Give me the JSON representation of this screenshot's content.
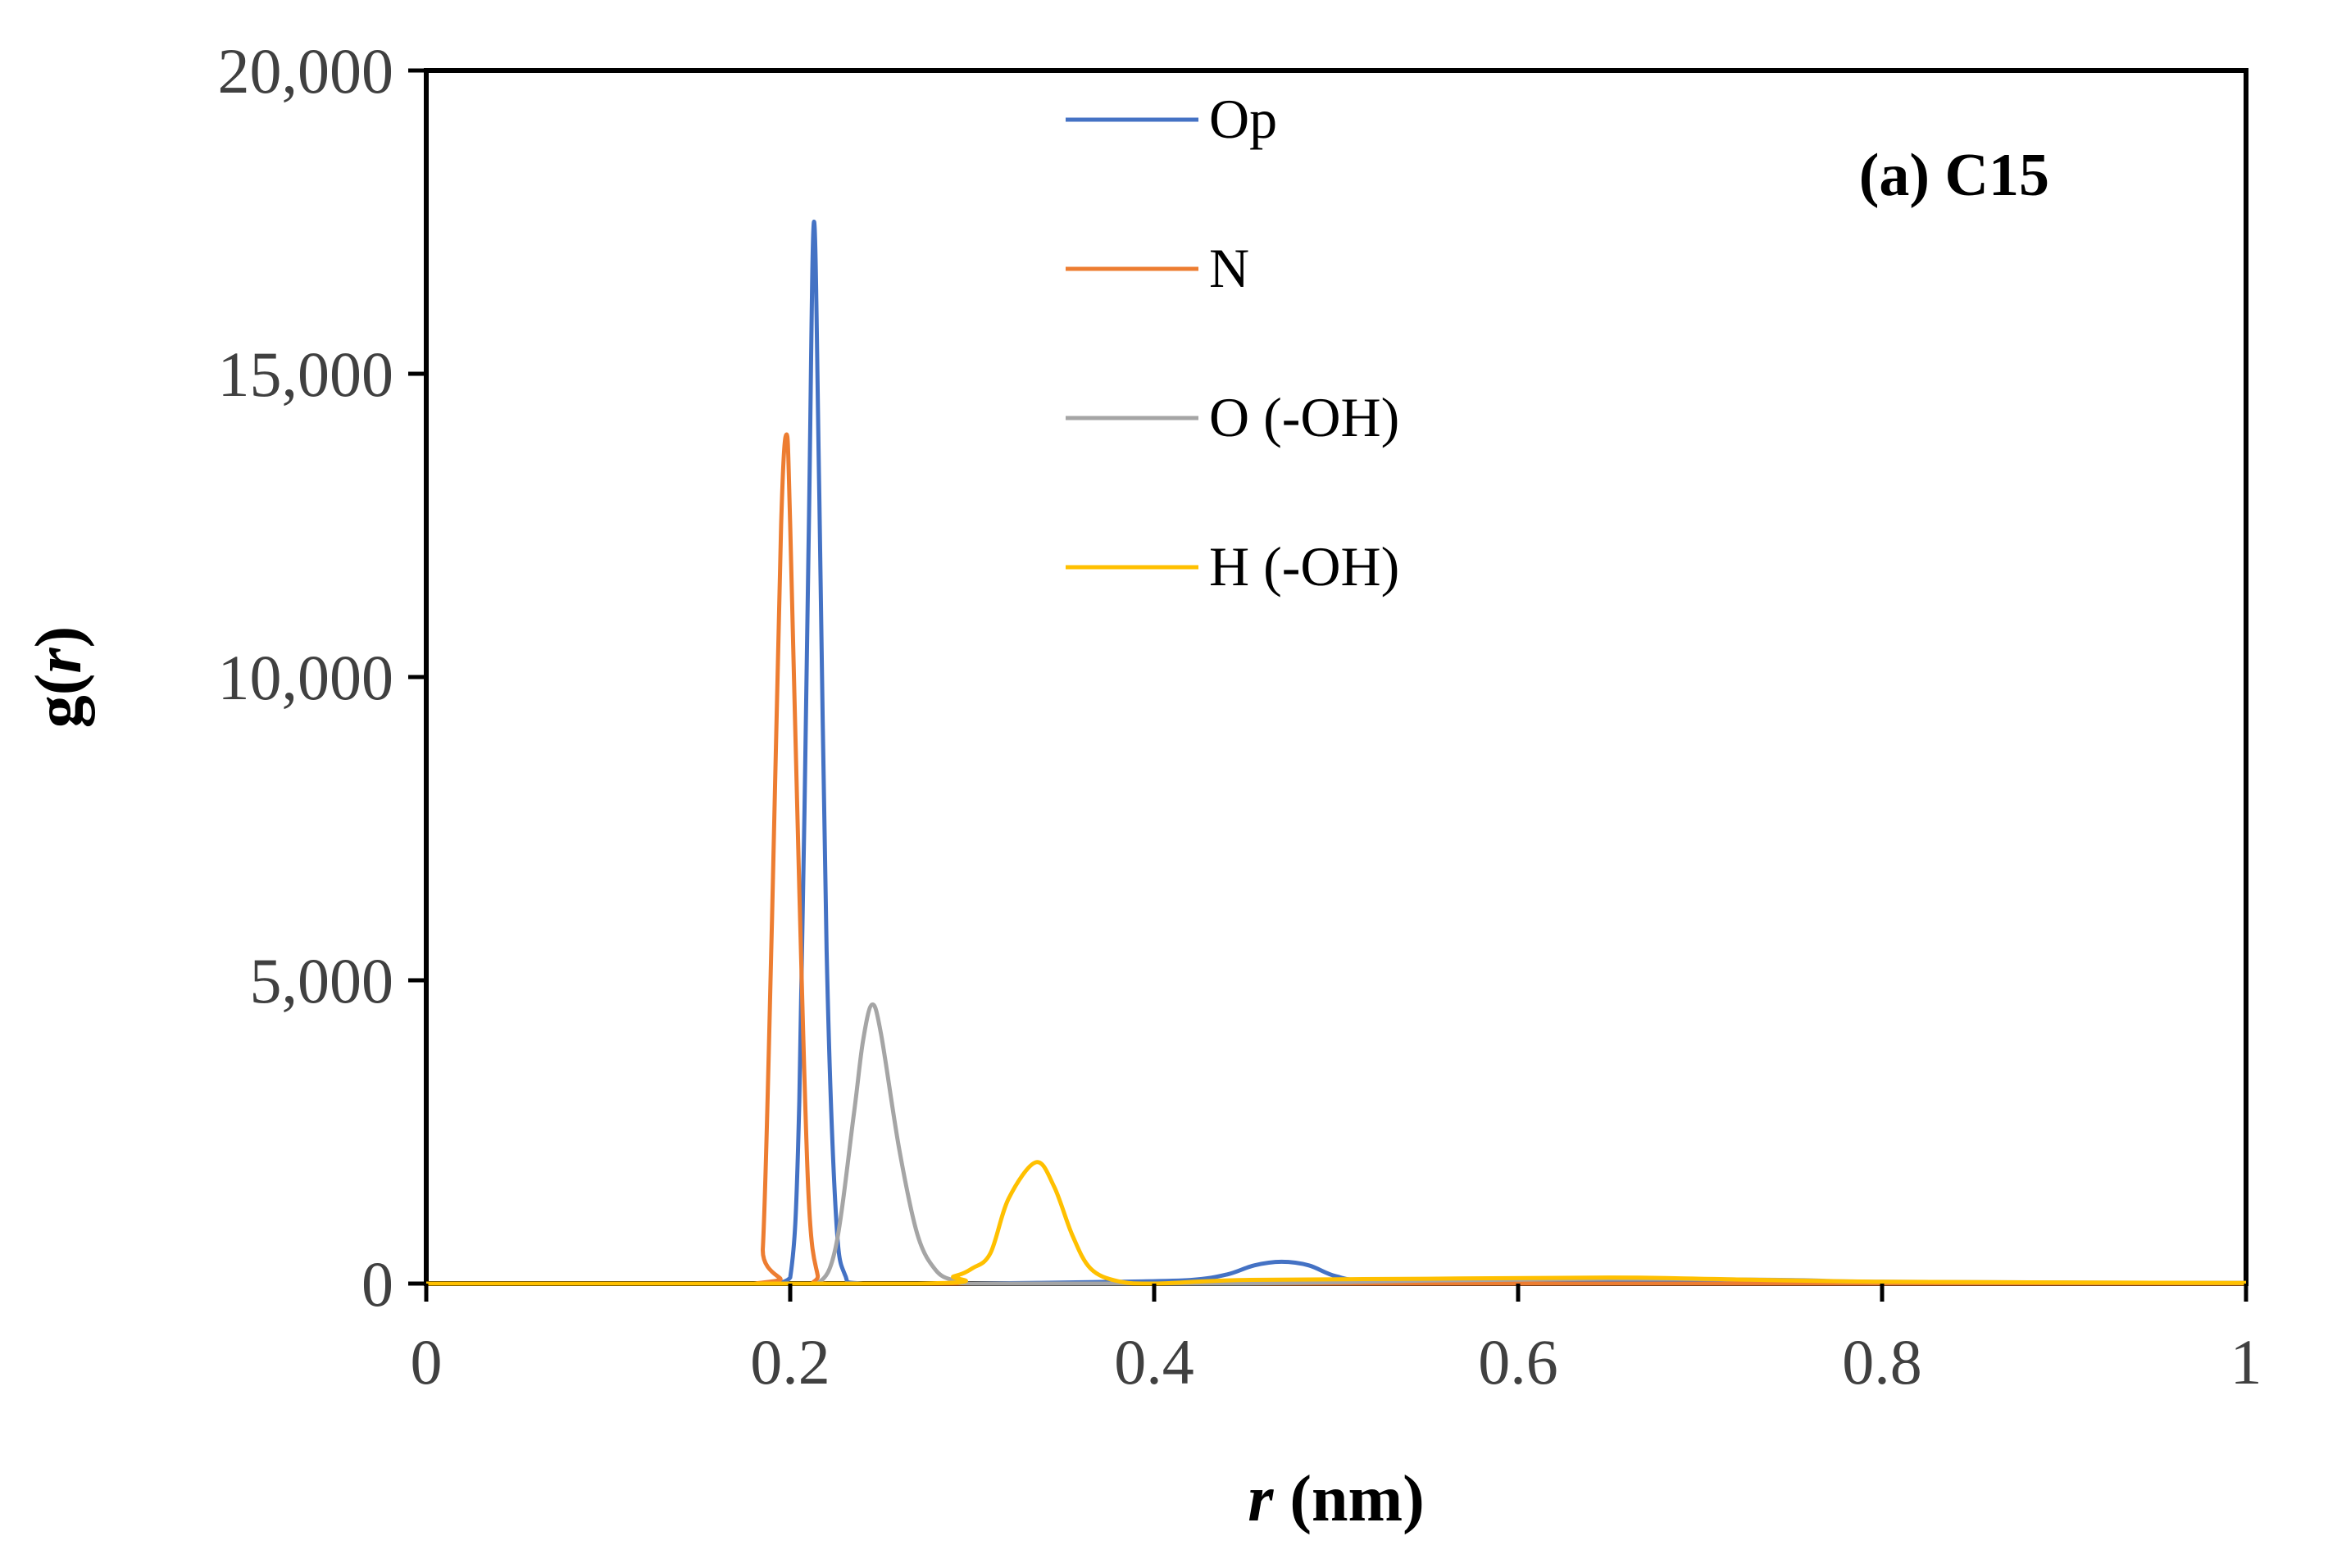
{
  "chart_data": {
    "type": "line",
    "title": "",
    "panel_label": "(a) C15",
    "xlabel_italic": "r",
    "xlabel_rest": " (nm)",
    "ylabel_pre": "g(",
    "ylabel_italic": "r",
    "ylabel_post": ")",
    "xlim": [
      0,
      1
    ],
    "ylim": [
      0,
      20000
    ],
    "x_ticks": [
      0,
      0.2,
      0.4,
      0.6,
      0.8,
      1
    ],
    "x_tick_labels": [
      "0",
      "0.2",
      "0.4",
      "0.6",
      "0.8",
      "1"
    ],
    "y_ticks": [
      0,
      5000,
      10000,
      15000,
      20000
    ],
    "y_tick_labels": [
      "0",
      "5,000",
      "10,000",
      "15,000",
      "20,000"
    ],
    "grid": false,
    "legend_position": "top-center",
    "series": [
      {
        "name": "Op",
        "color": "#4472C4",
        "x": [
          0.19,
          0.2,
          0.205,
          0.21,
          0.213,
          0.216,
          0.22,
          0.225,
          0.23,
          0.24,
          0.3,
          0.38,
          0.42,
          0.44,
          0.455,
          0.47,
          0.485,
          0.5,
          0.52,
          0.6,
          0.7,
          0.8,
          1.0
        ],
        "y": [
          0,
          100,
          3000,
          12000,
          17500,
          13000,
          5500,
          1200,
          150,
          0,
          0,
          30,
          60,
          150,
          300,
          360,
          300,
          120,
          50,
          40,
          30,
          20,
          10
        ]
      },
      {
        "name": "N",
        "color": "#ED7D31",
        "x": [
          0.0,
          0.18,
          0.185,
          0.19,
          0.195,
          0.198,
          0.2,
          0.205,
          0.21,
          0.215,
          0.22,
          0.3,
          0.6,
          0.8,
          1.0
        ],
        "y": [
          0,
          0,
          600,
          6000,
          12500,
          14000,
          12500,
          6500,
          1500,
          150,
          0,
          0,
          0,
          0,
          0
        ]
      },
      {
        "name": "O (-OH)",
        "color": "#A5A5A5",
        "x": [
          0.2,
          0.215,
          0.225,
          0.235,
          0.24,
          0.245,
          0.25,
          0.26,
          0.27,
          0.28,
          0.29,
          0.3,
          0.35,
          0.45,
          0.55,
          0.65,
          0.75,
          0.8,
          1.0
        ],
        "y": [
          0,
          0,
          600,
          2800,
          4000,
          4600,
          4100,
          2200,
          800,
          220,
          50,
          0,
          0,
          0,
          50,
          80,
          60,
          30,
          10
        ]
      },
      {
        "name": "H (-OH)",
        "color": "#FFC000",
        "x": [
          0.0,
          0.27,
          0.29,
          0.3,
          0.31,
          0.32,
          0.335,
          0.345,
          0.355,
          0.365,
          0.38,
          0.4,
          0.45,
          0.55,
          0.65,
          0.7,
          0.8,
          1.0
        ],
        "y": [
          0,
          0,
          120,
          250,
          500,
          1400,
          2000,
          1600,
          800,
          250,
          40,
          0,
          60,
          80,
          100,
          80,
          30,
          10
        ]
      }
    ]
  }
}
